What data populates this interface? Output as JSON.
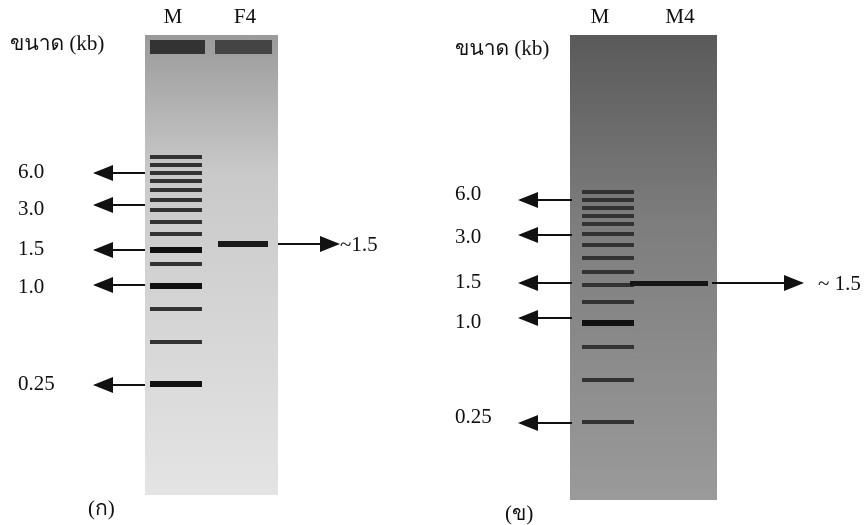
{
  "panels": [
    {
      "label": "(ก)",
      "size_label": "ขนาด (kb)",
      "lanes": [
        "M",
        "F4"
      ],
      "markers": [
        "6.0",
        "3.0",
        "1.5",
        "1.0",
        "0.25"
      ],
      "band_label": "~1.5"
    },
    {
      "label": "(ข)",
      "size_label": "ขนาด (kb)",
      "lanes": [
        "M",
        "M4"
      ],
      "markers": [
        "6.0",
        "3.0",
        "1.5",
        "1.0",
        "0.25"
      ],
      "band_label": "~ 1.5"
    }
  ]
}
